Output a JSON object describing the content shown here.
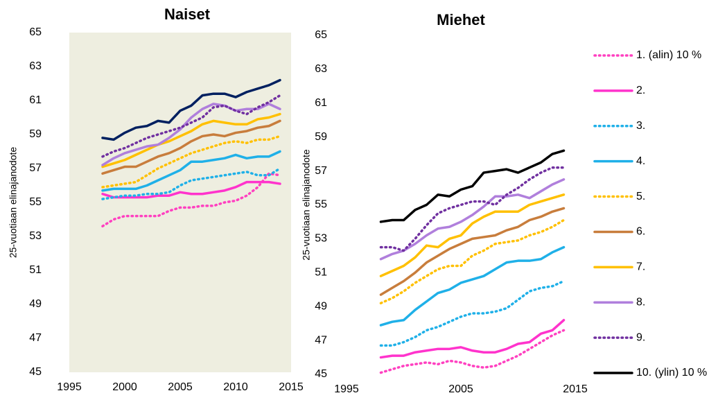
{
  "chart_data": [
    {
      "type": "line",
      "title": "Naiset",
      "ylabel": "25-vuotiaan elinajanodote",
      "x": [
        1998,
        1999,
        2000,
        2001,
        2002,
        2003,
        2004,
        2005,
        2006,
        2007,
        2008,
        2009,
        2010,
        2011,
        2012,
        2013,
        2014
      ],
      "xlim": [
        1995,
        2015
      ],
      "xticks": [
        1995,
        2000,
        2005,
        2010,
        2015
      ],
      "ylim": [
        45,
        65
      ],
      "yticks": [
        45,
        47,
        49,
        51,
        53,
        55,
        57,
        59,
        61,
        63,
        65
      ],
      "background": "#eeeee0",
      "series": [
        {
          "color": "#ff40c0",
          "style": "dotted",
          "values": [
            53.6,
            54.0,
            54.2,
            54.2,
            54.2,
            54.2,
            54.5,
            54.7,
            54.7,
            54.8,
            54.8,
            55.0,
            55.1,
            55.4,
            55.9,
            56.7,
            56.6
          ]
        },
        {
          "color": "#ff33cc",
          "style": "solid",
          "values": [
            55.5,
            55.3,
            55.3,
            55.3,
            55.3,
            55.4,
            55.4,
            55.6,
            55.5,
            55.5,
            55.6,
            55.7,
            55.9,
            56.2,
            56.2,
            56.2,
            56.1
          ]
        },
        {
          "color": "#1fb0e8",
          "style": "dotted",
          "values": [
            55.2,
            55.3,
            55.4,
            55.4,
            55.5,
            55.5,
            55.6,
            56.0,
            56.3,
            56.4,
            56.5,
            56.6,
            56.7,
            56.8,
            56.6,
            56.6,
            57.0
          ]
        },
        {
          "color": "#1fb0e8",
          "style": "solid",
          "values": [
            55.7,
            55.8,
            55.8,
            55.8,
            56.0,
            56.3,
            56.6,
            56.9,
            57.4,
            57.4,
            57.5,
            57.6,
            57.8,
            57.6,
            57.7,
            57.7,
            58.0
          ]
        },
        {
          "color": "#ffc000",
          "style": "dotted",
          "values": [
            55.9,
            56.0,
            56.1,
            56.2,
            56.6,
            57.0,
            57.3,
            57.6,
            57.9,
            58.1,
            58.3,
            58.5,
            58.6,
            58.5,
            58.7,
            58.7,
            58.9
          ]
        },
        {
          "color": "#c87d3c",
          "style": "solid",
          "values": [
            56.7,
            56.9,
            57.1,
            57.1,
            57.4,
            57.7,
            57.9,
            58.2,
            58.6,
            58.9,
            59.0,
            58.9,
            59.1,
            59.2,
            59.4,
            59.5,
            59.8
          ]
        },
        {
          "color": "#ffc000",
          "style": "solid",
          "values": [
            57.1,
            57.3,
            57.5,
            57.8,
            58.1,
            58.4,
            58.6,
            58.9,
            59.2,
            59.6,
            59.8,
            59.7,
            59.6,
            59.6,
            59.9,
            60.0,
            60.2
          ]
        },
        {
          "color": "#b07fdc",
          "style": "solid",
          "values": [
            57.2,
            57.6,
            57.9,
            58.1,
            58.3,
            58.4,
            58.8,
            59.3,
            60.0,
            60.5,
            60.8,
            60.7,
            60.4,
            60.5,
            60.5,
            60.8,
            60.5
          ]
        },
        {
          "color": "#7030a0",
          "style": "dotted",
          "values": [
            57.7,
            58.0,
            58.2,
            58.5,
            58.8,
            59.0,
            59.2,
            59.4,
            59.7,
            60.0,
            60.6,
            60.7,
            60.4,
            60.2,
            60.6,
            60.9,
            61.3
          ]
        },
        {
          "color": "#002060",
          "style": "solid",
          "values": [
            58.8,
            58.7,
            59.1,
            59.4,
            59.5,
            59.8,
            59.7,
            60.4,
            60.7,
            61.3,
            61.4,
            61.4,
            61.2,
            61.5,
            61.7,
            61.9,
            62.2
          ]
        }
      ]
    },
    {
      "type": "line",
      "title": "Miehet",
      "ylabel": "25-vuotiaan elinajanodote",
      "x": [
        1998,
        1999,
        2000,
        2001,
        2002,
        2003,
        2004,
        2005,
        2006,
        2007,
        2008,
        2009,
        2010,
        2011,
        2012,
        2013,
        2014
      ],
      "xlim": [
        1995,
        2015
      ],
      "xticks": [
        1995,
        2005,
        2015
      ],
      "ylim": [
        45,
        65
      ],
      "yticks": [
        45,
        47,
        49,
        51,
        53,
        55,
        57,
        59,
        61,
        63,
        65
      ],
      "background": "#ffffff",
      "legend": "right",
      "series": [
        {
          "name": "1. (alin) 10 %",
          "color": "#ff40c0",
          "style": "dotted",
          "values": [
            45.1,
            45.3,
            45.5,
            45.6,
            45.7,
            45.6,
            45.8,
            45.7,
            45.5,
            45.4,
            45.5,
            45.8,
            46.1,
            46.5,
            46.9,
            47.3,
            47.6
          ]
        },
        {
          "name": "2.",
          "color": "#ff33cc",
          "style": "solid",
          "values": [
            46.0,
            46.1,
            46.1,
            46.3,
            46.4,
            46.5,
            46.5,
            46.6,
            46.4,
            46.3,
            46.3,
            46.5,
            46.8,
            46.9,
            47.4,
            47.6,
            48.2
          ]
        },
        {
          "name": "3.",
          "color": "#1fb0e8",
          "style": "dotted",
          "values": [
            46.7,
            46.7,
            46.9,
            47.2,
            47.6,
            47.8,
            48.1,
            48.4,
            48.6,
            48.6,
            48.7,
            48.9,
            49.4,
            49.9,
            50.1,
            50.2,
            50.5
          ]
        },
        {
          "name": "4.",
          "color": "#1fb0e8",
          "style": "solid",
          "values": [
            47.9,
            48.1,
            48.2,
            48.8,
            49.3,
            49.8,
            50.0,
            50.4,
            50.6,
            50.8,
            51.2,
            51.6,
            51.7,
            51.7,
            51.8,
            52.2,
            52.5
          ]
        },
        {
          "name": "5.",
          "color": "#ffc000",
          "style": "dotted",
          "values": [
            49.2,
            49.5,
            49.9,
            50.4,
            50.8,
            51.2,
            51.4,
            51.4,
            52.0,
            52.3,
            52.7,
            52.8,
            52.9,
            53.2,
            53.4,
            53.7,
            54.1
          ]
        },
        {
          "name": "6.",
          "color": "#c87d3c",
          "style": "solid",
          "values": [
            49.7,
            50.1,
            50.5,
            51.0,
            51.6,
            52.0,
            52.4,
            52.7,
            53.0,
            53.1,
            53.2,
            53.5,
            53.7,
            54.1,
            54.3,
            54.6,
            54.8
          ]
        },
        {
          "name": "7.",
          "color": "#ffc000",
          "style": "solid",
          "values": [
            50.8,
            51.1,
            51.4,
            51.9,
            52.6,
            52.5,
            53.0,
            53.2,
            53.9,
            54.3,
            54.6,
            54.6,
            54.6,
            55.0,
            55.2,
            55.4,
            55.6
          ]
        },
        {
          "name": "8.",
          "color": "#b07fdc",
          "style": "solid",
          "values": [
            51.8,
            52.1,
            52.3,
            52.7,
            53.2,
            53.6,
            53.7,
            54.0,
            54.4,
            54.9,
            55.5,
            55.5,
            55.6,
            55.4,
            55.8,
            56.2,
            56.5
          ]
        },
        {
          "name": "9.",
          "color": "#7030a0",
          "style": "dotted",
          "values": [
            52.5,
            52.5,
            52.3,
            53.0,
            53.8,
            54.5,
            54.8,
            55.0,
            55.2,
            55.2,
            55.0,
            55.6,
            56.0,
            56.5,
            56.9,
            57.2,
            57.2
          ]
        },
        {
          "name": "10. (ylin) 10 %",
          "color": "#000000",
          "style": "solid",
          "values": [
            54.0,
            54.1,
            54.1,
            54.7,
            55.0,
            55.6,
            55.5,
            55.9,
            56.1,
            56.9,
            57.0,
            57.1,
            56.9,
            57.2,
            57.5,
            58.0,
            58.2
          ]
        }
      ]
    }
  ]
}
